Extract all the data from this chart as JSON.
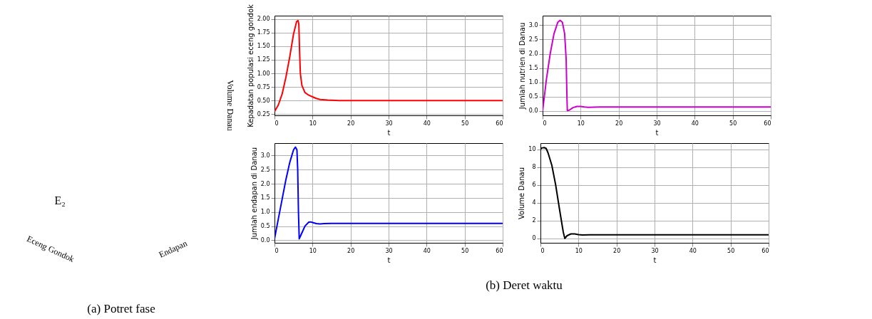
{
  "chart_data": [
    {
      "type": "other",
      "title": "(a) Potret fase",
      "xlabel": "Eceng Gondok",
      "ylabel": "Endapan",
      "y2label": "Volume Danau",
      "annotations": [
        "E₂"
      ]
    },
    {
      "type": "line",
      "xlabel": "t",
      "ylabel": "Kepadatan populasi eceng gondok",
      "xlim": [
        0,
        60
      ],
      "ylim": [
        0.23,
        2.06
      ],
      "xticks": [
        0,
        10,
        20,
        30,
        40,
        50,
        60
      ],
      "yticks": [
        {
          "value": 0.25,
          "label": "0.25"
        },
        {
          "value": 0.5,
          "label": "0.50"
        },
        {
          "value": 0.75,
          "label": "0.75"
        },
        {
          "value": 1.0,
          "label": "1.00"
        },
        {
          "value": 1.25,
          "label": "1.25"
        },
        {
          "value": 1.5,
          "label": "1.50"
        },
        {
          "value": 1.75,
          "label": "1.75"
        },
        {
          "value": 2.0,
          "label": "2.00"
        }
      ],
      "grid": true,
      "series": [
        {
          "color": "#ff0000",
          "x": [
            0,
            1,
            2,
            3,
            4,
            5,
            5.8,
            6.2,
            6.4,
            6.6,
            6.8,
            7.2,
            8,
            9,
            10,
            11,
            12,
            14,
            17,
            20,
            60
          ],
          "values": [
            0.3,
            0.42,
            0.62,
            0.93,
            1.3,
            1.72,
            1.95,
            1.97,
            1.9,
            1.4,
            1.0,
            0.78,
            0.65,
            0.6,
            0.57,
            0.54,
            0.52,
            0.51,
            0.5,
            0.5,
            0.5
          ]
        }
      ]
    },
    {
      "type": "line",
      "xlabel": "t",
      "ylabel": "Jumlah nutrien di Danau",
      "xlim": [
        0,
        60
      ],
      "ylim": [
        -0.15,
        3.33
      ],
      "xticks": [
        0,
        10,
        20,
        30,
        40,
        50,
        60
      ],
      "yticks": [
        {
          "value": 0,
          "label": "0.0"
        },
        0.5,
        {
          "value": 1,
          "label": "1.0"
        },
        1.5,
        {
          "value": 2,
          "label": "2.0"
        },
        2.5,
        {
          "value": 3,
          "label": "3.0"
        }
      ],
      "grid": true,
      "series": [
        {
          "color": "#cc00cc",
          "x": [
            0,
            1,
            2,
            3,
            4,
            4.6,
            5.2,
            5.8,
            6.2,
            6.4,
            6.5,
            7,
            8,
            9,
            10,
            11,
            12,
            15,
            60
          ],
          "values": [
            0,
            1.1,
            2.0,
            2.7,
            3.1,
            3.17,
            3.1,
            2.7,
            1.8,
            0.5,
            0.02,
            0.03,
            0.12,
            0.16,
            0.16,
            0.14,
            0.13,
            0.14,
            0.14
          ]
        }
      ]
    },
    {
      "type": "line",
      "xlabel": "t",
      "ylabel": "Jumlah endapan di Danau",
      "xlim": [
        0,
        60
      ],
      "ylim": [
        -0.09,
        3.44
      ],
      "xticks": [
        0,
        10,
        20,
        30,
        40,
        50,
        60
      ],
      "yticks": [
        {
          "value": 0,
          "label": "0.0"
        },
        0.5,
        {
          "value": 1,
          "label": "1.0"
        },
        1.5,
        {
          "value": 2,
          "label": "2.0"
        },
        2.5,
        {
          "value": 3,
          "label": "3.0"
        }
      ],
      "grid": true,
      "series": [
        {
          "color": "#0000ff",
          "x": [
            0,
            1,
            2,
            3,
            4,
            5,
            5.5,
            5.9,
            6.1,
            6.3,
            6.5,
            7,
            8,
            9,
            9.5,
            10,
            11,
            12,
            13,
            15,
            60
          ],
          "values": [
            0.05,
            0.75,
            1.45,
            2.15,
            2.75,
            3.2,
            3.3,
            3.2,
            2.5,
            1.0,
            0.05,
            0.2,
            0.5,
            0.64,
            0.65,
            0.63,
            0.59,
            0.58,
            0.59,
            0.6,
            0.6
          ]
        }
      ]
    },
    {
      "type": "line",
      "xlabel": "t",
      "ylabel": "Volume Danau",
      "xlim": [
        0,
        60
      ],
      "ylim": [
        -0.5,
        10.7
      ],
      "xticks": [
        0,
        10,
        20,
        30,
        40,
        50,
        60
      ],
      "yticks": [
        0,
        2,
        4,
        6,
        8,
        10
      ],
      "grid": true,
      "series": [
        {
          "color": "#000000",
          "x": [
            0,
            0.3,
            1,
            1.5,
            2,
            3,
            4,
            5,
            6,
            6.4,
            7,
            8,
            9,
            10,
            11,
            13,
            60
          ],
          "values": [
            10.0,
            10.15,
            10.2,
            10.1,
            9.6,
            8.2,
            6.0,
            3.3,
            0.7,
            0.0,
            0.3,
            0.5,
            0.5,
            0.42,
            0.38,
            0.4,
            0.4
          ]
        }
      ]
    },
    {
      "type": "other",
      "title": "(b) Deret waktu"
    }
  ]
}
